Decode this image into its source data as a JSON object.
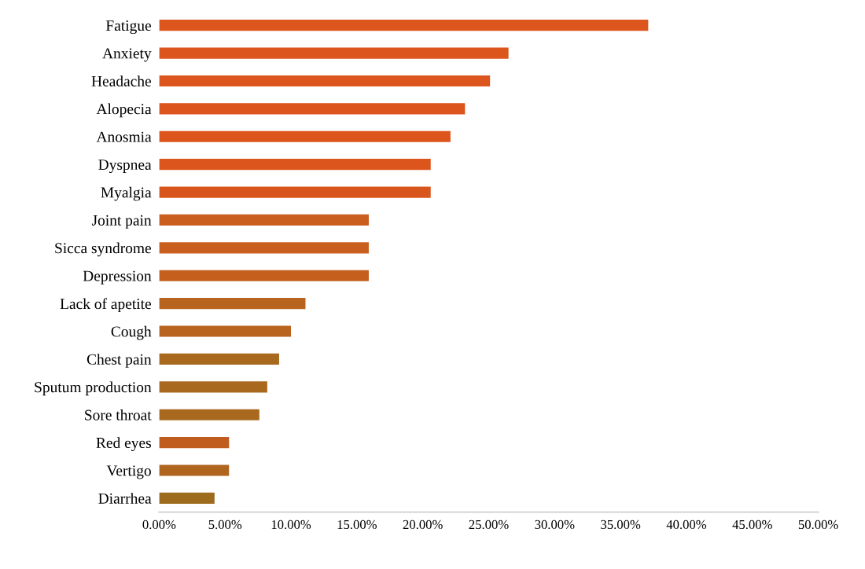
{
  "chart_data": {
    "type": "bar",
    "orientation": "horizontal",
    "categories": [
      "Fatigue",
      "Anxiety",
      "Headache",
      "Alopecia",
      "Anosmia",
      "Dyspnea",
      "Myalgia",
      "Joint pain",
      "Sicca syndrome",
      "Depression",
      "Lack of apetite",
      "Cough",
      "Chest pain",
      "Sputum production",
      "Sore throat",
      "Red eyes",
      "Vertigo",
      "Diarrhea"
    ],
    "values": [
      37.1,
      26.5,
      25.1,
      23.2,
      22.1,
      20.6,
      20.6,
      15.9,
      15.9,
      15.9,
      11.1,
      10.0,
      9.1,
      8.2,
      7.6,
      5.3,
      5.3,
      4.2
    ],
    "colors": [
      "#dc551c",
      "#dc551c",
      "#dc551c",
      "#dc551c",
      "#dc551c",
      "#dc551c",
      "#d8561d",
      "#c95e1e",
      "#c95e1e",
      "#c45f1e",
      "#b8641e",
      "#b8641e",
      "#a8691e",
      "#a8691e",
      "#a8691e",
      "#c05c1e",
      "#b0651e",
      "#9c6b1e"
    ],
    "xlim": [
      0,
      50
    ],
    "xticks": [
      {
        "value": 0,
        "label": "0.00%"
      },
      {
        "value": 5,
        "label": "5.00%"
      },
      {
        "value": 10,
        "label": "10.00%"
      },
      {
        "value": 15,
        "label": "15.00%"
      },
      {
        "value": 20,
        "label": "20.00%"
      },
      {
        "value": 25,
        "label": "25.00%"
      },
      {
        "value": 30,
        "label": "30.00%"
      },
      {
        "value": 35,
        "label": "35.00%"
      },
      {
        "value": 40,
        "label": "40.00%"
      },
      {
        "value": 45,
        "label": "45.00%"
      },
      {
        "value": 50,
        "label": "50.00%"
      }
    ],
    "grid": false,
    "legend": false
  }
}
